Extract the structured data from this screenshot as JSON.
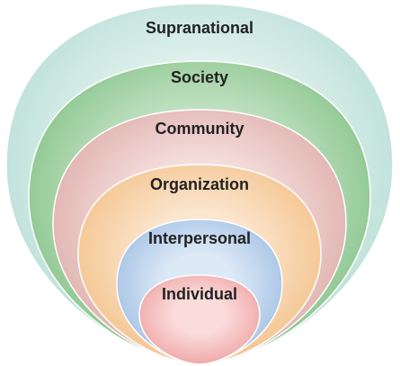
{
  "diagram": {
    "layers": [
      {
        "label": "Supranational",
        "edge_color": "#b4dcd3",
        "center_color": "#eaf6f3"
      },
      {
        "label": "Society",
        "edge_color": "#7fbf83",
        "center_color": "#d2ead2"
      },
      {
        "label": "Community",
        "edge_color": "#dba9a6",
        "center_color": "#f7e3e1"
      },
      {
        "label": "Organization",
        "edge_color": "#f3bf85",
        "center_color": "#fbe6cf"
      },
      {
        "label": "Interpersonal",
        "edge_color": "#9dbde3",
        "center_color": "#dde9f6"
      },
      {
        "label": "Individual",
        "edge_color": "#eea1a1",
        "center_color": "#fbdcdc"
      }
    ]
  }
}
